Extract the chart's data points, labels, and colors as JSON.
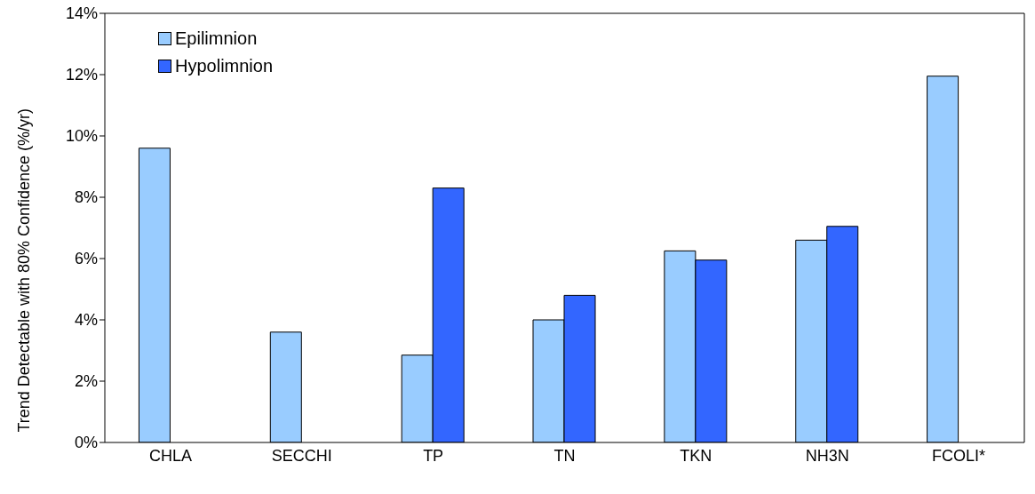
{
  "chart_data": {
    "type": "bar",
    "ylabel": "Trend Detectable with 80% Confidence (%/yr)",
    "categories": [
      "CHLA",
      "SECCHI",
      "TP",
      "TN",
      "TKN",
      "NH3N",
      "FCOLI*"
    ],
    "series": [
      {
        "name": "Epilimnion",
        "color": "#99ccff",
        "values": [
          9.6,
          3.6,
          2.85,
          4.0,
          6.25,
          6.6,
          11.95
        ]
      },
      {
        "name": "Hypolimnion",
        "color": "#3366ff",
        "values": [
          null,
          null,
          8.3,
          4.8,
          5.95,
          7.05,
          null
        ]
      }
    ],
    "ylim": [
      0,
      14
    ],
    "yticks": [
      {
        "value": 0,
        "label": "0%"
      },
      {
        "value": 2,
        "label": "2%"
      },
      {
        "value": 4,
        "label": "4%"
      },
      {
        "value": 6,
        "label": "6%"
      },
      {
        "value": 8,
        "label": "8%"
      },
      {
        "value": 10,
        "label": "10%"
      },
      {
        "value": 12,
        "label": "12%"
      },
      {
        "value": 14,
        "label": "14%"
      }
    ],
    "legend": "top left",
    "grid": false
  }
}
